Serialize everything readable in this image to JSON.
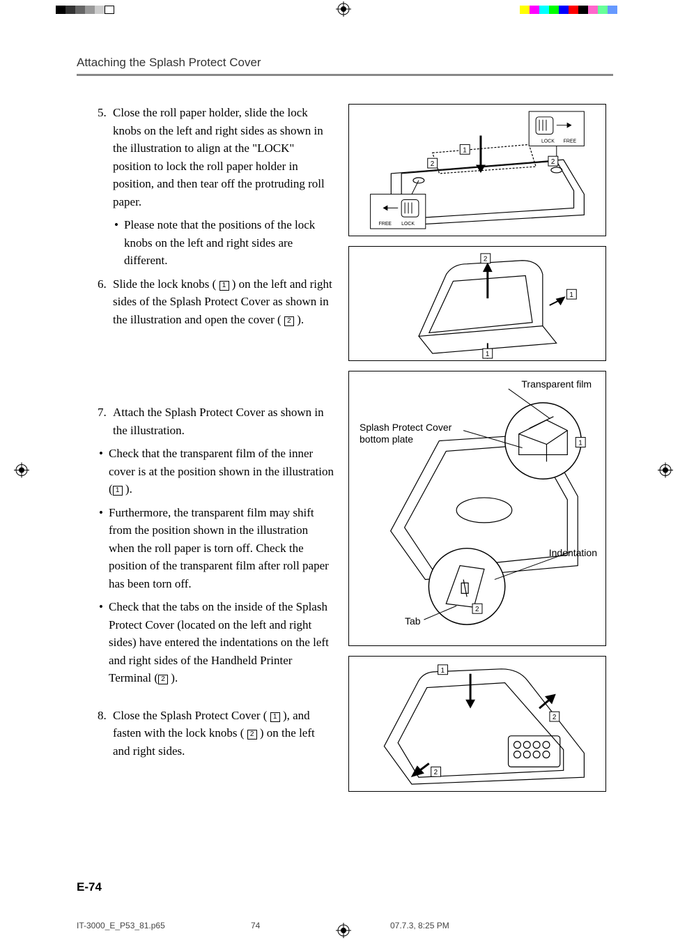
{
  "colorBar": {
    "left": [
      "#000000",
      "#333333",
      "#666666",
      "#999999",
      "#cccccc",
      "#ffffff"
    ],
    "right": [
      "#ffff00",
      "#ff00ff",
      "#00ffff",
      "#00ff00",
      "#0000ff",
      "#ff0000",
      "#000000",
      "#ff66cc",
      "#66ff99",
      "#6699ff"
    ]
  },
  "header": "Attaching the Splash Protect Cover",
  "step5": {
    "num": "5.",
    "text": "Close the roll paper holder, slide the lock knobs on the left and right sides as shown in the illustration to align at the \"LOCK\" position to lock the roll paper holder in position, and then tear off the protruding roll paper.",
    "sub": "Please note that the positions of the lock knobs on the left and right sides are different."
  },
  "step6": {
    "num": "6.",
    "text_a": "Slide the lock knobs ( ",
    "text_b": " ) on the left and right sides of the Splash Protect Cover as shown in the illustration and open the cover ( ",
    "text_c": " )."
  },
  "step7": {
    "num": "7.",
    "text": "Attach the Splash Protect Cover as shown in the illustration.",
    "b1_a": "Check that the transparent film of the inner cover is at the position shown in the illustration (",
    "b1_b": " ).",
    "b2": "Furthermore, the transparent film may shift from the position shown in the illustration when the roll paper is torn off.  Check the position of the transparent film after roll paper has been torn off.",
    "b3_a": "Check that the tabs on the inside of the Splash Protect Cover (located on the left and right sides) have entered the indentations on the left and right sides of the Handheld Printer Terminal (",
    "b3_b": " )."
  },
  "step8": {
    "num": "8.",
    "text_a": "Close the Splash Protect Cover ( ",
    "text_b": " ), and fasten with the lock knobs ( ",
    "text_c": " ) on the left and right sides."
  },
  "diagram1": {
    "lock": "LOCK",
    "free": "FREE",
    "n1": "1",
    "n2": "2"
  },
  "diagram2": {
    "n1": "1",
    "n2": "2"
  },
  "diagram3": {
    "transparentFilm": "Transparent film",
    "splashPlate": "Splash Protect Cover bottom plate",
    "indentation": "Indentation",
    "tab": "Tab",
    "n1": "1",
    "n2": "2"
  },
  "diagram4": {
    "n1": "1",
    "n2": "2"
  },
  "pageNum": "E-74",
  "footer": {
    "file": "IT-3000_E_P53_81.p65",
    "page": "74",
    "date": "07.7.3, 8:25 PM"
  }
}
